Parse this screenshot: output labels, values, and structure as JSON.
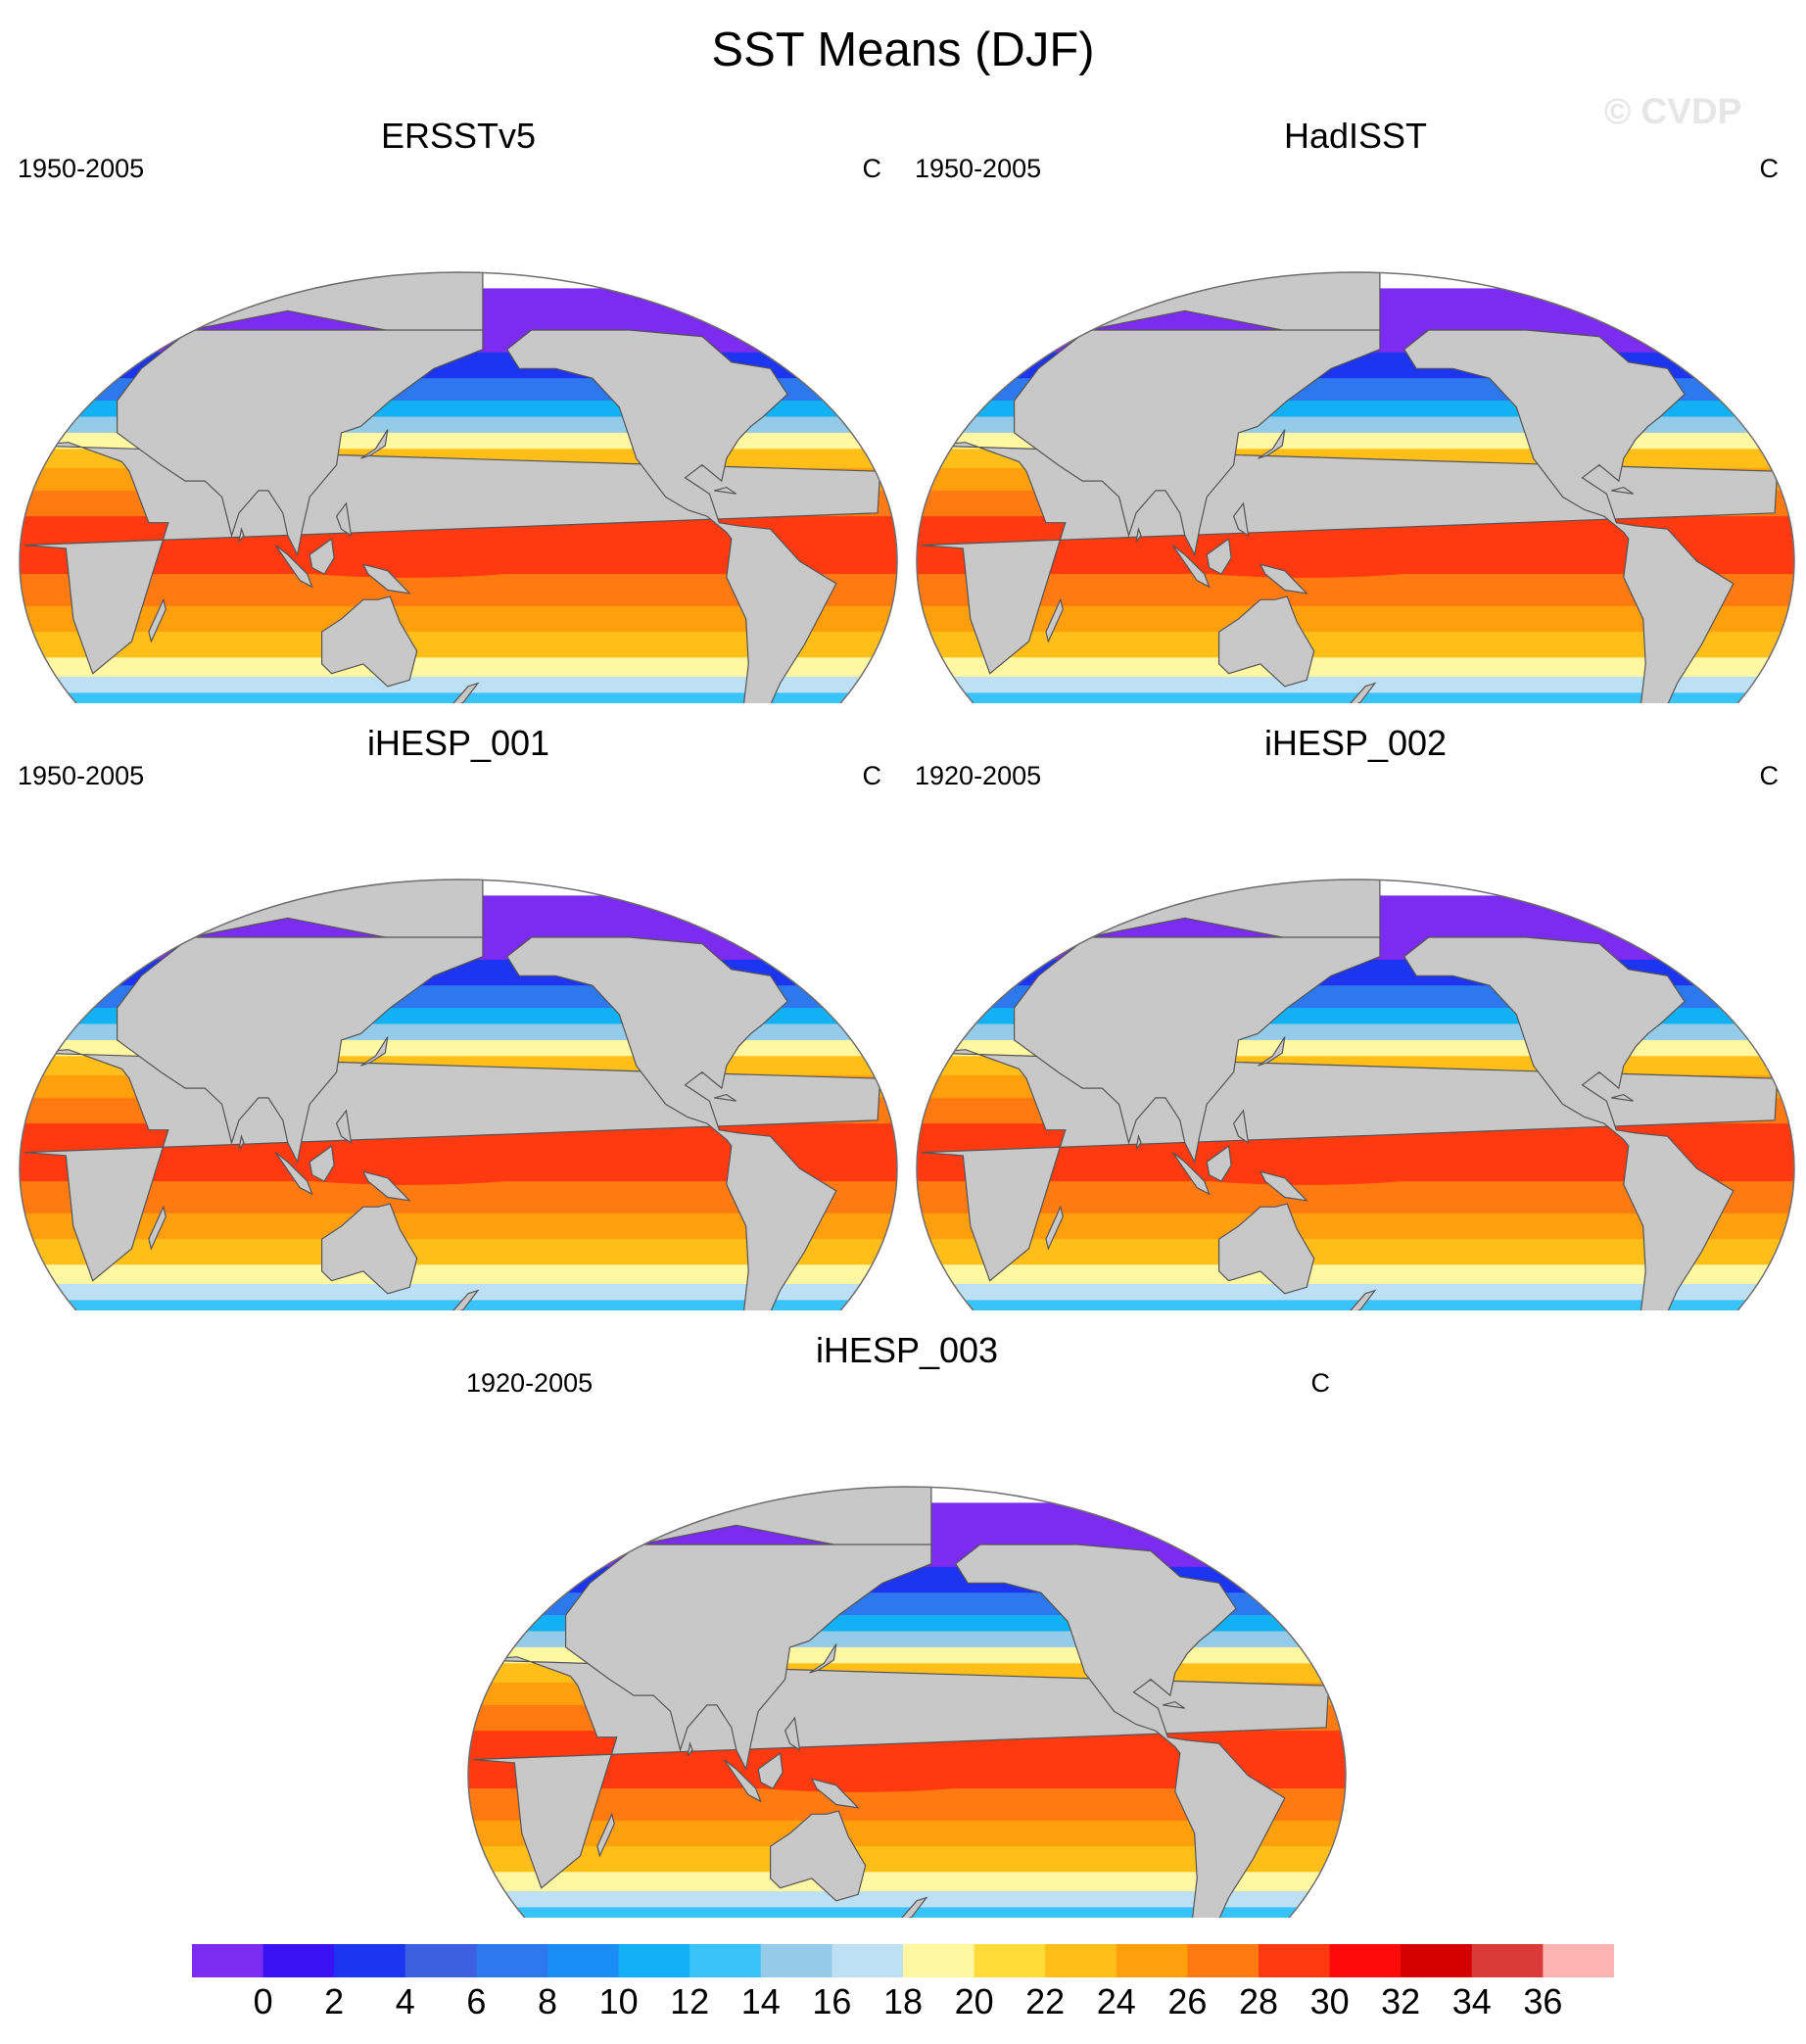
{
  "title": "SST Means (DJF)",
  "watermark": "© CVDP",
  "panels": [
    {
      "title": "ERSSTv5",
      "period": "1950-2005",
      "units": "C"
    },
    {
      "title": "HadISST",
      "period": "1950-2005",
      "units": "C"
    },
    {
      "title": "iHESP_001",
      "period": "1950-2005",
      "units": "C"
    },
    {
      "title": "iHESP_002",
      "period": "1920-2005",
      "units": "C"
    },
    {
      "title": "iHESP_003",
      "period": "1920-2005",
      "units": "C"
    }
  ],
  "colorbar": {
    "labels": [
      "0",
      "2",
      "4",
      "6",
      "8",
      "10",
      "12",
      "14",
      "16",
      "18",
      "20",
      "22",
      "24",
      "26",
      "28",
      "30",
      "32",
      "34",
      "36"
    ],
    "colors": [
      "#7c2bf0",
      "#3a13f5",
      "#1d35f0",
      "#3d5fe0",
      "#2d78ec",
      "#1a8ef6",
      "#12b0f5",
      "#3ac3f8",
      "#93cbe8",
      "#bde0f4",
      "#fff7a2",
      "#ffdc3a",
      "#ffbf18",
      "#ff9f0c",
      "#ff7a10",
      "#ff3a10",
      "#ff0a0a",
      "#d40000",
      "#d93a3a",
      "#ffb3b3"
    ]
  },
  "map_colors": {
    "land": "#c8c8c8",
    "land_stroke": "#555555",
    "frame": "#6e6e6e"
  }
}
